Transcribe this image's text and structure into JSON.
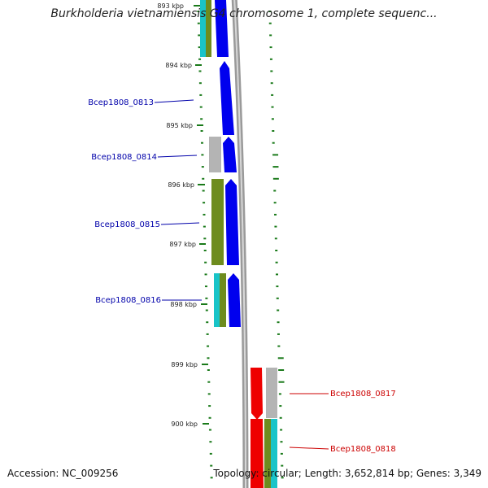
{
  "title": "Burkholderia vietnamiensis G4 chromosome 1, complete sequenc...",
  "colors": {
    "backbone": "#8e8e8e",
    "tick": "#1a7a1a",
    "forward_cds": "#0000ee",
    "reverse_cds": "#ee0000",
    "label_forward": "#0000aa",
    "label_reverse": "#cc0000",
    "cog_cyan": "#19c4c8",
    "cog_olive": "#6e8c1e",
    "cog_grey": "#b4b4b4"
  },
  "ticks": {
    "labels": [
      "893 kbp",
      "894 kbp",
      "895 kbp",
      "896 kbp",
      "897 kbp",
      "898 kbp",
      "899 kbp",
      "900 kbp"
    ]
  },
  "genes": [
    {
      "id": "Bcep1808_0813",
      "strand": "forward",
      "label": "Bcep1808_0813"
    },
    {
      "id": "Bcep1808_0814",
      "strand": "forward",
      "label": "Bcep1808_0814"
    },
    {
      "id": "Bcep1808_0815",
      "strand": "forward",
      "label": "Bcep1808_0815"
    },
    {
      "id": "Bcep1808_0816",
      "strand": "forward",
      "label": "Bcep1808_0816"
    },
    {
      "id": "Bcep1808_0817",
      "strand": "reverse",
      "label": "Bcep1808_0817"
    },
    {
      "id": "Bcep1808_0818",
      "strand": "reverse",
      "label": "Bcep1808_0818"
    }
  ],
  "footer": {
    "accession": "Accession: NC_009256",
    "topology": "Topology: circular; Length: 3,652,814 bp; Genes: 3,349"
  }
}
